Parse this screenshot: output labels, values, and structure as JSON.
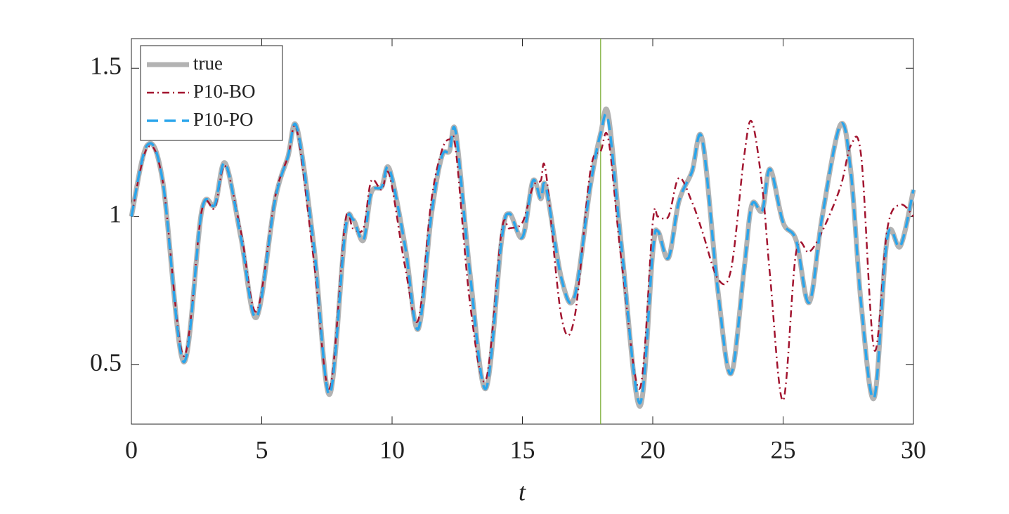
{
  "chart_data": {
    "type": "line",
    "xlabel": "t",
    "x": [
      0,
      0.6,
      1.2,
      2.0,
      2.7,
      3.2,
      3.6,
      4.2,
      4.8,
      5.5,
      6.0,
      6.35,
      7.0,
      7.6,
      8.2,
      8.5,
      8.9,
      9.2,
      9.6,
      9.9,
      10.5,
      11.0,
      11.5,
      11.9,
      12.2,
      12.45,
      13.0,
      13.6,
      14.2,
      14.5,
      15.0,
      15.4,
      15.7,
      15.9,
      16.5,
      17.0,
      17.6,
      18.0,
      18.3,
      18.8,
      19.5,
      20.0,
      20.2,
      20.6,
      21.0,
      21.5,
      21.9,
      22.5,
      23.0,
      23.5,
      23.8,
      24.2,
      24.5,
      25.0,
      25.5,
      26.0,
      26.5,
      27.2,
      27.6,
      28.0,
      28.5,
      29.0,
      29.5,
      30.0
    ],
    "series": [
      {
        "name": "true",
        "color": "#b3b3b3",
        "style": "solid",
        "values": [
          1.0,
          1.24,
          1.12,
          0.51,
          1.02,
          1.04,
          1.18,
          0.93,
          0.66,
          1.05,
          1.2,
          1.3,
          0.9,
          0.4,
          0.95,
          0.99,
          0.92,
          1.08,
          1.1,
          1.16,
          0.9,
          0.62,
          1.0,
          1.2,
          1.22,
          1.28,
          0.8,
          0.42,
          0.92,
          1.01,
          0.93,
          1.12,
          1.06,
          1.1,
          0.79,
          0.73,
          1.1,
          1.28,
          1.34,
          0.9,
          0.36,
          0.88,
          0.95,
          0.86,
          1.05,
          1.15,
          1.26,
          0.75,
          0.47,
          0.82,
          1.04,
          1.02,
          1.16,
          0.98,
          0.92,
          0.71,
          1.0,
          1.31,
          1.15,
          0.7,
          0.39,
          0.93,
          0.9,
          1.09
        ]
      },
      {
        "name": "P10-BO",
        "color": "#a2142f",
        "style": "dashdot",
        "values": [
          1.0,
          1.23,
          1.12,
          0.53,
          1.02,
          1.03,
          1.17,
          0.95,
          0.68,
          1.06,
          1.2,
          1.29,
          0.85,
          0.42,
          0.98,
          0.96,
          0.96,
          1.12,
          1.09,
          1.14,
          0.83,
          0.65,
          1.05,
          1.22,
          1.26,
          1.22,
          0.7,
          0.45,
          0.95,
          0.96,
          0.98,
          1.1,
          1.12,
          1.15,
          0.66,
          0.66,
          1.15,
          1.22,
          1.26,
          0.85,
          0.42,
          0.98,
          1.0,
          1.0,
          1.13,
          1.05,
          0.95,
          0.79,
          0.82,
          1.2,
          1.32,
          1.1,
          0.8,
          0.38,
          0.88,
          0.88,
          0.95,
          1.1,
          1.24,
          1.2,
          0.55,
          0.96,
          1.04,
          1.0
        ]
      },
      {
        "name": "P10-PO",
        "color": "#2aa5eb",
        "style": "dashed",
        "values": [
          1.0,
          1.24,
          1.12,
          0.51,
          1.02,
          1.04,
          1.18,
          0.93,
          0.66,
          1.05,
          1.2,
          1.3,
          0.9,
          0.4,
          0.95,
          0.99,
          0.92,
          1.08,
          1.1,
          1.16,
          0.9,
          0.62,
          1.0,
          1.2,
          1.22,
          1.28,
          0.8,
          0.42,
          0.92,
          1.01,
          0.93,
          1.12,
          1.06,
          1.1,
          0.79,
          0.73,
          1.1,
          1.28,
          1.32,
          0.9,
          0.37,
          0.88,
          0.95,
          0.86,
          1.05,
          1.15,
          1.26,
          0.75,
          0.47,
          0.82,
          1.04,
          1.02,
          1.16,
          0.98,
          0.92,
          0.71,
          1.0,
          1.31,
          1.15,
          0.7,
          0.39,
          0.93,
          0.9,
          1.09
        ]
      }
    ],
    "vline": {
      "value": 18,
      "color": "#77ac30"
    },
    "xlim": [
      0,
      30
    ],
    "xticks": [
      0,
      5,
      10,
      15,
      20,
      25,
      30
    ],
    "ylim": [
      0.3,
      1.6
    ],
    "yticks": [
      0.5,
      1,
      1.5
    ],
    "legend": "northwest"
  }
}
